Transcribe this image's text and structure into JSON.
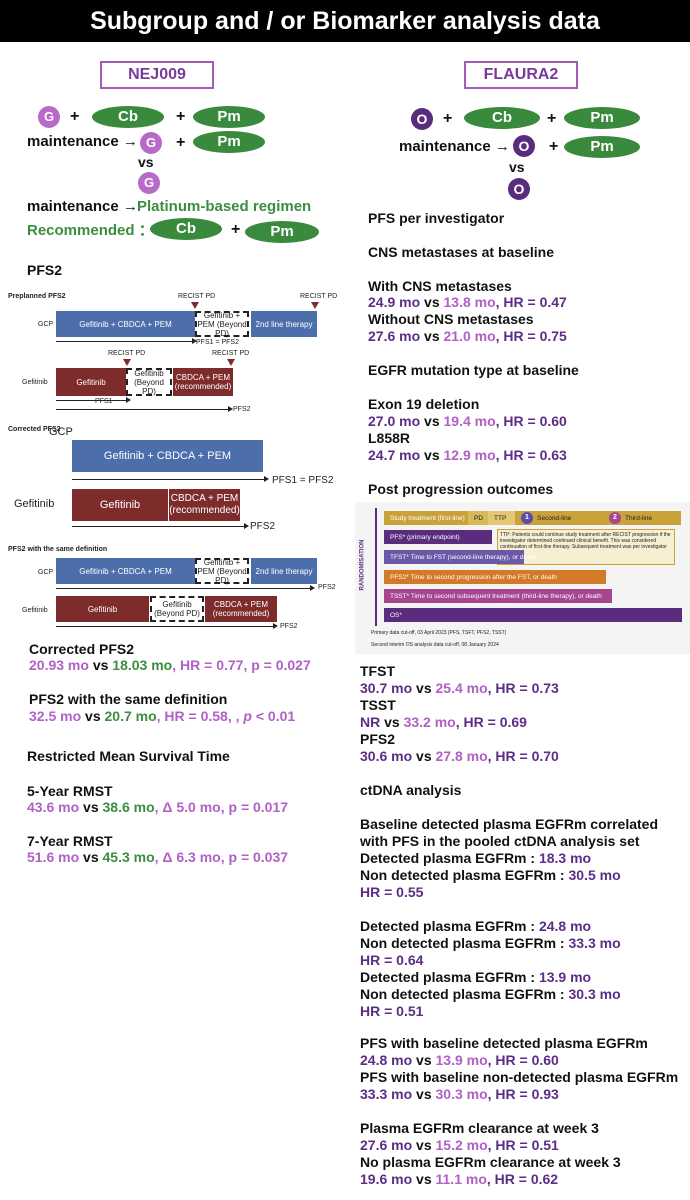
{
  "title": "Subgroup and / or Biomarker analysis data",
  "left": {
    "trial": "NEJ009",
    "regimen": {
      "g": "G",
      "cb": "Cb",
      "pm": "Pm",
      "plus": "+",
      "maintenance_label": "maintenance →",
      "vs": "vs",
      "maintenance2": "maintenance →",
      "platinum": "Platinum-based regimen",
      "recommended": "Recommended ："
    },
    "pfs2_head": "PFS2",
    "diagram": {
      "preplanned": "Preplanned PFS2",
      "recist1": "RECIST PD",
      "recist2": "RECIST PD",
      "recist3": "RECIST PD",
      "recist4": "RECIST PD",
      "gcp": "GCP",
      "gcp_bar": "Gefitinib + CBDCA + PEM",
      "gcp_beyond": "Gefitinib + PEM (Beyond PD)",
      "second_line": "2nd line therapy",
      "pfs1_pfs2": "PFS1 = PFS2",
      "gefitinib": "Gefitinib",
      "gef_bar": "Gefitinib",
      "gef_beyond": "Gefitinib (Beyond PD)",
      "cbdca_rec": "CBDCA + PEM (recommended)",
      "pfs1": "PFS1",
      "pfs2": "PFS2",
      "corrected": "Corrected PFS2",
      "c_gcp": "GCP",
      "c_gcp_bar": "Gefitinib + CBDCA + PEM",
      "c_pfs1_pfs2": "PFS1 = PFS2",
      "c_gef": "Gefitinib",
      "c_gef_bar": "Gefitinib",
      "c_cbdca": "CBDCA + PEM (recommended)",
      "c_pfs2": "PFS2",
      "same_def": "PFS2 with the same definition",
      "s_gcp": "GCP",
      "s_gcp_bar": "Gefitinib + CBDCA + PEM",
      "s_beyond": "Gefitinib + PEM (Beyond PD)",
      "s_second": "2nd line therapy",
      "s_pfs2a": "PFS2",
      "s_gef": "Gefitinib",
      "s_gef_bar": "Gefitinib",
      "s_gef_beyond": "Gefitinib (Beyond PD)",
      "s_cbdca": "CBDCA + PEM (recommended)",
      "s_pfs2b": "PFS2"
    },
    "corrected_pfs2": {
      "head": "Corrected PFS2",
      "a": "20.93 mo",
      "vs": " vs ",
      "b": "18.03 mo",
      "rest": ", HR = 0.77, p = 0.027"
    },
    "same_pfs2": {
      "head": "PFS2 with the same definition",
      "a": "32.5 mo",
      "vs": " vs ",
      "b": "20.7 mo",
      "rest": ", HR = 0.58, , ",
      "p": "p",
      "rest2": " < 0.01"
    },
    "rmst_head": "Restricted Mean Survival Time",
    "rmst5": {
      "head": "5-Year RMST",
      "a": "43.6 mo",
      "vs": " vs ",
      "b": "38.6 mo",
      "rest": ",  Δ 5.0 mo, p = 0.017"
    },
    "rmst7": {
      "head": "7-Year RMST",
      "a": "51.6 mo",
      "vs": " vs ",
      "b": "45.3 mo",
      "rest": ",  Δ 6.3 mo, p = 0.037"
    }
  },
  "right": {
    "trial": "FLAURA2",
    "regimen": {
      "o": "O",
      "cb": "Cb",
      "pm": "Pm",
      "plus": "+",
      "maintenance_label": "maintenance →",
      "vs": "vs"
    },
    "pfs_inv": "PFS per investigator",
    "cns_head": "CNS metastases at baseline",
    "cns_with": "With CNS metastases",
    "cns_with_val": {
      "a": "24.9 mo",
      "vs": " vs ",
      "b": "13.8 mo",
      "rest": ", HR = 0.47"
    },
    "cns_without": "Without CNS metastases",
    "cns_without_val": {
      "a": "27.6 mo",
      "vs": " vs ",
      "b": "21.0 mo",
      "rest": ", HR = 0.75"
    },
    "egfr_head": "EGFR mutation type at baseline",
    "ex19": "Exon 19 deletion",
    "ex19_val": {
      "a": "27.0 mo",
      "vs": " vs ",
      "b": "19.4 mo",
      "rest": ", HR = 0.60"
    },
    "l858r": "L858R",
    "l858r_val": {
      "a": "24.7 mo",
      "vs": " vs ",
      "b": "12.9 mo",
      "rest": ", HR = 0.63"
    },
    "post_head": "Post progression outcomes",
    "diagram": {
      "randomisation": "RANDOMISATION",
      "study_tx": "Study treatment (first-line)",
      "pd": "PD",
      "ttp": "TTP",
      "n1": "1",
      "second_line": "Second-line",
      "n2": "2",
      "third_line": "Third-line",
      "pfs": "PFS* (primary endpoint)",
      "tfst": "TFST* Time to FST (second-line therapy), or death",
      "pfs2": "PFS2* Time to second progression after the FST, or death",
      "tsst": "TSST* Time to second subsequent treatment (third-line therapy), or death",
      "os": "OS*",
      "ttp_note": "TTP: Patients could continue study treatment after RECIST progression if the investigator determined continued clinical benefit. This was considered continuation of first-line therapy. Subsequent treatment was per investigator choice",
      "foot1": "Primary data cut-off, 03 April 2023 (PFS, TSFT, PFS2, TSST)",
      "foot2": "Second interim OS analysis data cut-off, 08 January 2024"
    },
    "tfst": "TFST",
    "tfst_val": {
      "a": "30.7 mo",
      "vs": " vs ",
      "b": "25.4 mo",
      "rest": ", HR = 0.73"
    },
    "tsst": "TSST",
    "tsst_val": {
      "a": "NR",
      "vs": " vs ",
      "b": "33.2 mo",
      "rest": ", HR = 0.69"
    },
    "pfs2": "PFS2",
    "pfs2_val": {
      "a": "30.6 mo",
      "vs": " vs ",
      "b": "27.8 mo",
      "rest": ", HR = 0.70"
    },
    "ctdna_head": "ctDNA analysis",
    "ct1_l1": "Baseline detected plasma EGFRm correlated",
    "ct1_l2": "with PFS in the pooled ctDNA analysis set",
    "ct1_det": "Detected plasma EGFRm : ",
    "ct1_det_v": "18.3 mo",
    "ct1_non": "Non detected plasma EGFRm : ",
    "ct1_non_v": "30.5 mo",
    "ct1_hr": "HR = 0.55",
    "ct2_det": "Detected plasma EGFRm : ",
    "ct2_det_v": "24.8 mo",
    "ct2_non": "Non detected plasma EGFRm : ",
    "ct2_non_v": "33.3 mo",
    "ct2_hr": "HR = 0.64",
    "ct3_det": "Detected plasma EGFRm : ",
    "ct3_det_v": "13.9 mo",
    "ct3_non": "Non detected plasma EGFRm : ",
    "ct3_non_v": "30.3 mo",
    "ct3_hr": "HR = 0.51",
    "pfs_det": "PFS with baseline detected plasma EGFRm",
    "pfs_det_val": {
      "a": "24.8 mo",
      "vs": " vs ",
      "b": "13.9 mo",
      "rest": ", HR = 0.60"
    },
    "pfs_non": "PFS with baseline non-detected plasma EGFRm",
    "pfs_non_val": {
      "a": "33.3 mo",
      "vs": " vs ",
      "b": "30.3 mo",
      "rest": ", HR = 0.93"
    },
    "clear": "Plasma EGFRm clearance at week 3",
    "clear_val": {
      "a": "27.6 mo",
      "vs": " vs ",
      "b": "15.2 mo",
      "rest": ", HR = 0.51"
    },
    "noclear": "No plasma EGFRm clearance at week 3",
    "noclear_val": {
      "a": "19.6 mo",
      "vs": " vs ",
      "b": "11.1 mo",
      "rest": ", HR = 0.62"
    }
  }
}
